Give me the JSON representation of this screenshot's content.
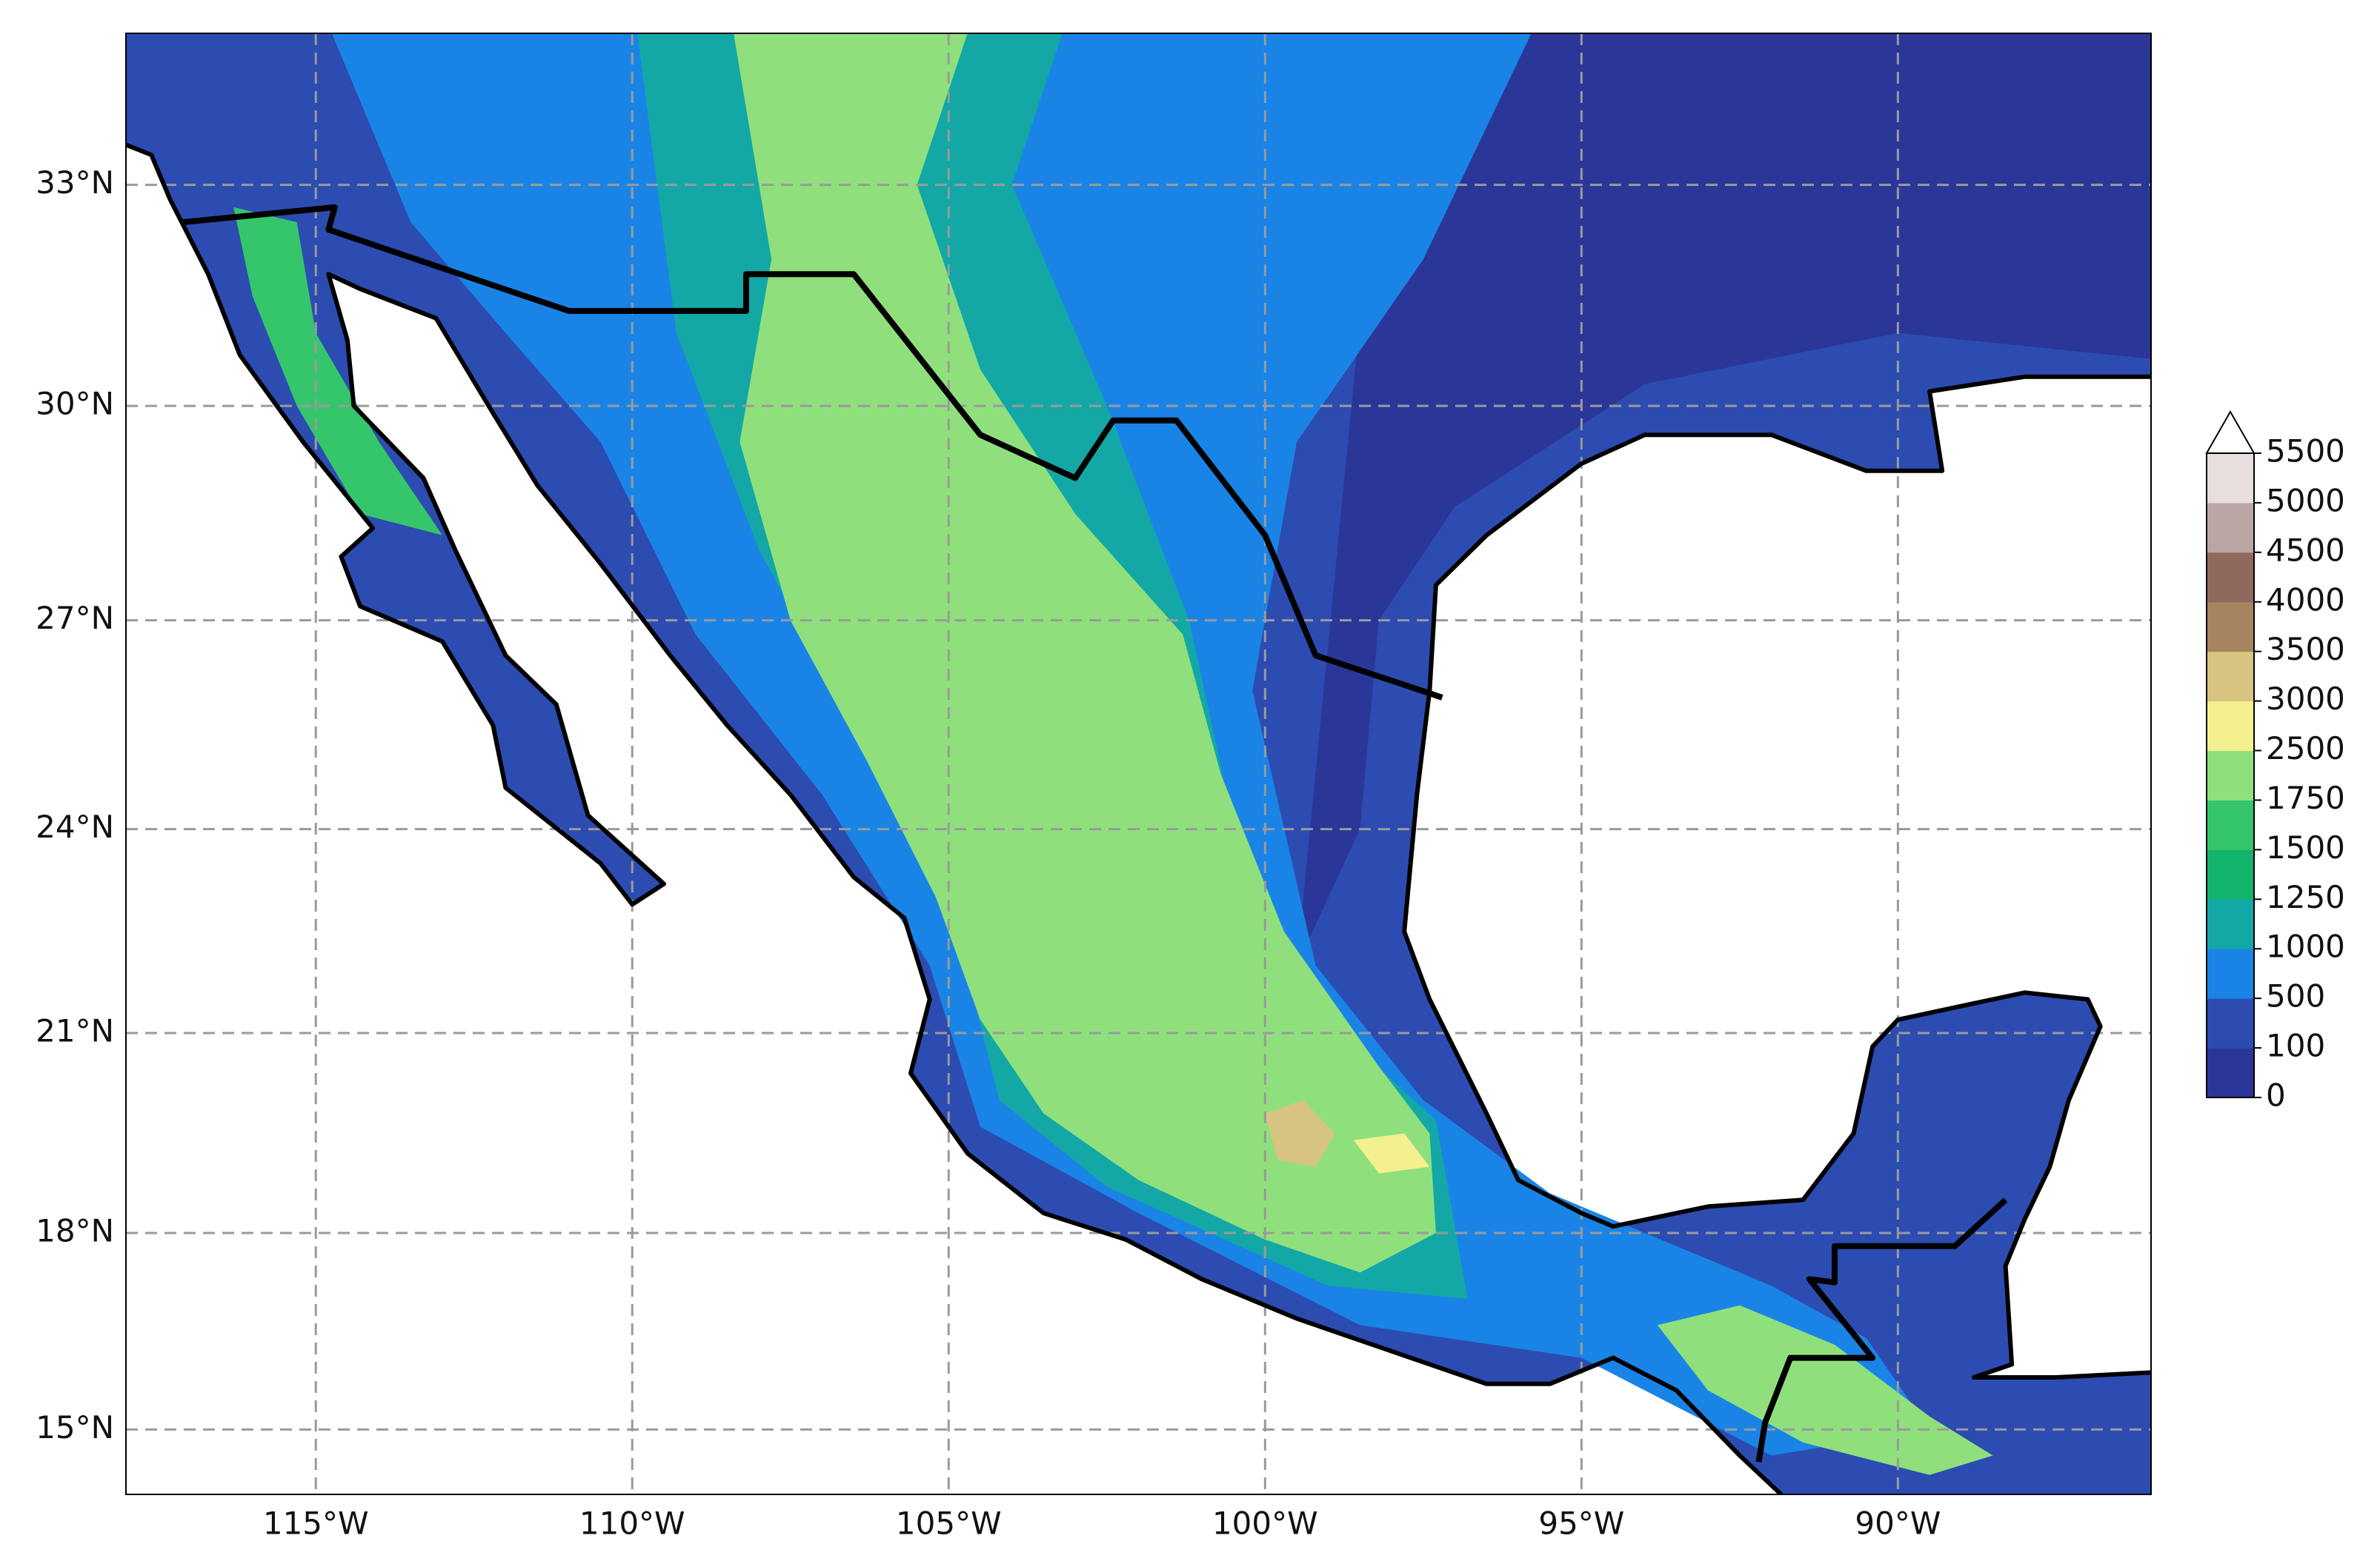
{
  "map": {
    "projection": "mercator",
    "xlim": [
      -118,
      -86
    ],
    "ylim": [
      14,
      35
    ],
    "grid": true,
    "xticks": [
      {
        "value": -115,
        "label": "115°W"
      },
      {
        "value": -110,
        "label": "110°W"
      },
      {
        "value": -105,
        "label": "105°W"
      },
      {
        "value": -100,
        "label": "100°W"
      },
      {
        "value": -95,
        "label": "95°W"
      },
      {
        "value": -90,
        "label": "90°W"
      }
    ],
    "yticks": [
      {
        "value": 15,
        "label": "15°N"
      },
      {
        "value": 18,
        "label": "18°N"
      },
      {
        "value": 21,
        "label": "21°N"
      },
      {
        "value": 24,
        "label": "24°N"
      },
      {
        "value": 27,
        "label": "27°N"
      },
      {
        "value": 30,
        "label": "30°N"
      },
      {
        "value": 33,
        "label": "33°N"
      }
    ],
    "colorbar": {
      "levels": [
        0,
        100,
        500,
        1000,
        1250,
        1500,
        1750,
        2500,
        3000,
        3500,
        4000,
        4500,
        5000,
        5500
      ],
      "colors": [
        "#2b3699",
        "#2c4cb2",
        "#1a84e6",
        "#13a8a6",
        "#12b36b",
        "#35c66c",
        "#8fe07d",
        "#f4f08f",
        "#d6c480",
        "#a5845f",
        "#8d6a5b",
        "#bca6a4",
        "#e6dfde"
      ],
      "extend": "max",
      "extend_color": "#ffffff"
    }
  }
}
